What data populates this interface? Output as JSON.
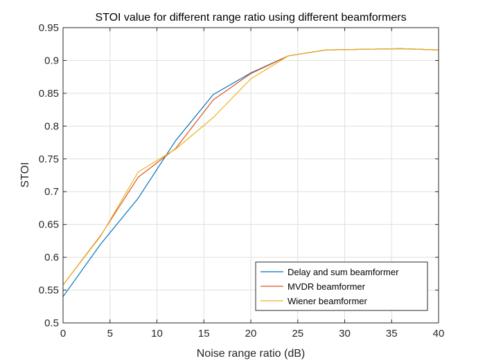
{
  "chart_data": {
    "type": "line",
    "title": "STOI value for different range ratio using different beamformers",
    "xlabel": "Noise range ratio (dB)",
    "ylabel": "STOI",
    "xlim": [
      0,
      40
    ],
    "ylim": [
      0.5,
      0.95
    ],
    "x_ticks": [
      0,
      5,
      10,
      15,
      20,
      25,
      30,
      35,
      40
    ],
    "y_ticks": [
      0.5,
      0.55,
      0.6,
      0.65,
      0.7,
      0.75,
      0.8,
      0.85,
      0.9,
      0.95
    ],
    "grid": true,
    "legend_position": "bottom-right",
    "x": [
      0,
      4,
      8,
      12,
      16,
      20,
      24,
      28,
      32,
      36,
      40
    ],
    "series": [
      {
        "name": "Delay and sum beamformer",
        "color": "#0072BD",
        "values": [
          0.54,
          0.62,
          0.69,
          0.778,
          0.848,
          0.881,
          0.907,
          0.916,
          0.917,
          0.918,
          0.916
        ]
      },
      {
        "name": "MVDR beamformer",
        "color": "#D95319",
        "values": [
          0.558,
          0.633,
          0.722,
          0.766,
          0.84,
          0.88,
          0.907,
          0.916,
          0.917,
          0.918,
          0.916
        ]
      },
      {
        "name": "Wiener beamformer",
        "color": "#EDB120",
        "values": [
          0.558,
          0.632,
          0.73,
          0.765,
          0.813,
          0.872,
          0.907,
          0.916,
          0.917,
          0.918,
          0.916
        ]
      }
    ]
  }
}
